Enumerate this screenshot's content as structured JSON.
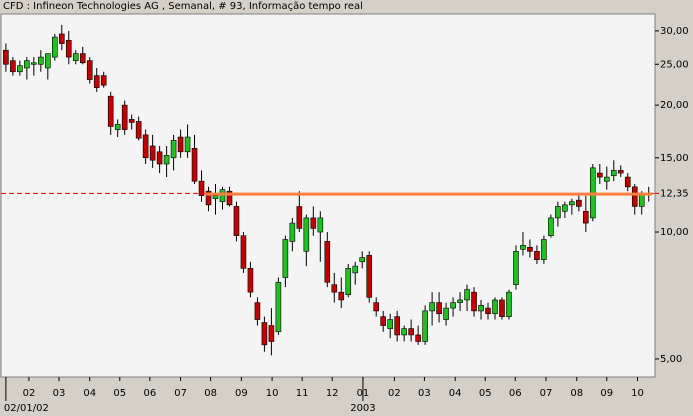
{
  "chart_data": {
    "type": "candlestick",
    "title": "CFD : Infineon Technologies AG , Semanal, # 93, Informação tempo real",
    "up_color": "#20c020",
    "down_color": "#c00000",
    "open": [
      27,
      25.5,
      24,
      24.5,
      25,
      25,
      24.5,
      26,
      29.5,
      28.5,
      25.5,
      26.5,
      25.5,
      23.5,
      23.5,
      21,
      17.5,
      20,
      18.5,
      18.3,
      17,
      16,
      15.5,
      14.5,
      15,
      16.8,
      15.5,
      15.8,
      13.2,
      12.5,
      12,
      11.8,
      12.5,
      11.5,
      9.8,
      8.2,
      6.8,
      6.1,
      6,
      5.8,
      7.8,
      9.5,
      11.5,
      9,
      10.8,
      10,
      9.5,
      7.5,
      7.2,
      7.1,
      8,
      8.5,
      8.8,
      6.8,
      6.3,
      5.9,
      6.3,
      5.7,
      5.9,
      5.7,
      5.5,
      6.5,
      6.8,
      6.2,
      6.6,
      6.8,
      6.9,
      7.2,
      6.5,
      6.6,
      6.4,
      6.9,
      6.3,
      7.5,
      9.1,
      9.2,
      9,
      8.6,
      9.8,
      10.8,
      11.2,
      11.6,
      11.9,
      11.2,
      10.8,
      13.8,
      13.2,
      13.6,
      14,
      13.5,
      12.8,
      11.5,
      12.3
    ],
    "high": [
      28,
      26,
      25.5,
      26,
      26,
      27,
      26.5,
      29.5,
      31,
      30,
      27,
      27.5,
      26,
      24.5,
      24,
      21.5,
      18.5,
      20.5,
      19,
      18.8,
      17.5,
      17,
      16,
      16,
      17,
      17.5,
      18,
      17,
      14,
      12.8,
      13,
      12.8,
      12.8,
      11.8,
      10,
      8.5,
      7,
      6.3,
      6.6,
      7.8,
      9.8,
      10.8,
      12.5,
      11,
      11.5,
      11.2,
      10,
      8,
      7.8,
      8.4,
      8.5,
      9,
      9,
      7,
      6.5,
      6.4,
      6.5,
      6,
      6.2,
      6,
      6.7,
      7.2,
      7.2,
      6.8,
      7,
      7.2,
      7.5,
      7.4,
      6.9,
      6.8,
      7,
      7,
      7.3,
      9.3,
      10,
      9.6,
      9.3,
      9.8,
      11,
      11.8,
      11.8,
      12,
      12.2,
      12.2,
      14.5,
      14.5,
      14.3,
      14.8,
      14.4,
      13.8,
      13,
      12.5,
      12.8
    ],
    "low": [
      24,
      23.5,
      23.5,
      23,
      23.5,
      24,
      23,
      25.5,
      27,
      25,
      25,
      25,
      22.5,
      21.5,
      22,
      17,
      16.8,
      17,
      17.5,
      16.5,
      14.5,
      14.2,
      13.8,
      13.5,
      14,
      15,
      15,
      13,
      11.8,
      11.2,
      11,
      11.3,
      11.5,
      9.5,
      8,
      7,
      6,
      5.2,
      5.1,
      5.7,
      7.4,
      9,
      10,
      8.3,
      9.8,
      8.5,
      7.4,
      6.8,
      6.6,
      7,
      7.5,
      8.2,
      6.8,
      6.3,
      5.8,
      5.6,
      5.5,
      5.5,
      5.5,
      5.4,
      5.4,
      6,
      6.1,
      6,
      6.3,
      6.5,
      6.5,
      6.3,
      6.2,
      6.2,
      6.2,
      6.2,
      6.2,
      7.3,
      8.8,
      8.7,
      8.4,
      8.4,
      9.7,
      10.3,
      10.8,
      11,
      11.2,
      10,
      10.6,
      13,
      12.6,
      13.2,
      13.5,
      12.5,
      11,
      11,
      11.8
    ],
    "close": [
      25,
      24,
      24.8,
      25.5,
      25.2,
      26,
      26.5,
      29,
      28,
      26,
      26.5,
      25.2,
      23,
      22,
      22.3,
      17.8,
      18,
      17.5,
      18.2,
      16.7,
      15,
      14.8,
      14.5,
      15.2,
      16.5,
      15.5,
      16.8,
      13.2,
      12.2,
      11.6,
      12.2,
      12.6,
      11.6,
      9.8,
      8.2,
      7.2,
      6.2,
      5.4,
      5.5,
      7.6,
      9.6,
      10.5,
      10.2,
      10.8,
      10.2,
      10.8,
      7.6,
      7.2,
      6.9,
      8.2,
      8.3,
      8.7,
      7,
      6.5,
      6,
      6.2,
      5.7,
      5.9,
      5.7,
      5.5,
      6.5,
      6.8,
      6.4,
      6.6,
      6.8,
      6.9,
      7.3,
      6.5,
      6.7,
      6.4,
      6.9,
      6.3,
      7.2,
      9,
      9.3,
      9,
      8.6,
      9.6,
      10.8,
      11.5,
      11.6,
      11.8,
      11.5,
      10.5,
      14.2,
      13.5,
      13.5,
      14,
      13.8,
      12.8,
      11.5,
      12.3,
      12.35
    ],
    "log_scale": true,
    "ylim": [
      4.53,
      32.9
    ],
    "yticks": [
      {
        "value": 5,
        "label": "5,00"
      },
      {
        "value": 10,
        "label": "10,00"
      },
      {
        "value": 15,
        "label": "15,00"
      },
      {
        "value": 20,
        "label": "20,00"
      },
      {
        "value": 25,
        "label": "25,00"
      },
      {
        "value": 30,
        "label": "30,00"
      }
    ],
    "xlim": [
      -0.7,
      92.9
    ],
    "xticks": [
      {
        "value": 3.3,
        "label": "02"
      },
      {
        "value": 7.6,
        "label": "03"
      },
      {
        "value": 12,
        "label": "04"
      },
      {
        "value": 16.3,
        "label": "05"
      },
      {
        "value": 20.6,
        "label": "06"
      },
      {
        "value": 25,
        "label": "07"
      },
      {
        "value": 29.3,
        "label": "08"
      },
      {
        "value": 33.7,
        "label": "09"
      },
      {
        "value": 38.1,
        "label": "10"
      },
      {
        "value": 42.4,
        "label": "11"
      },
      {
        "value": 46.7,
        "label": "12"
      },
      {
        "value": 51.1,
        "label": "01"
      },
      {
        "value": 55.6,
        "label": "02"
      },
      {
        "value": 59.9,
        "label": "03"
      },
      {
        "value": 64.3,
        "label": "04"
      },
      {
        "value": 68.6,
        "label": "05"
      },
      {
        "value": 72.9,
        "label": "06"
      },
      {
        "value": 77.3,
        "label": "07"
      },
      {
        "value": 81.7,
        "label": "08"
      },
      {
        "value": 86,
        "label": "09"
      },
      {
        "value": 90.4,
        "label": "10"
      }
    ],
    "xticks_major": [
      {
        "value": 0,
        "label": "02/01/02"
      },
      {
        "value": 51.1,
        "label": "2003"
      }
    ],
    "price_line": {
      "value": 12.35,
      "label": "12,35",
      "color": "#e00000"
    },
    "trendline": {
      "x": [
        28.5,
        92.5
      ],
      "y": [
        12.3,
        12.3
      ],
      "color": "#ff8040"
    }
  }
}
